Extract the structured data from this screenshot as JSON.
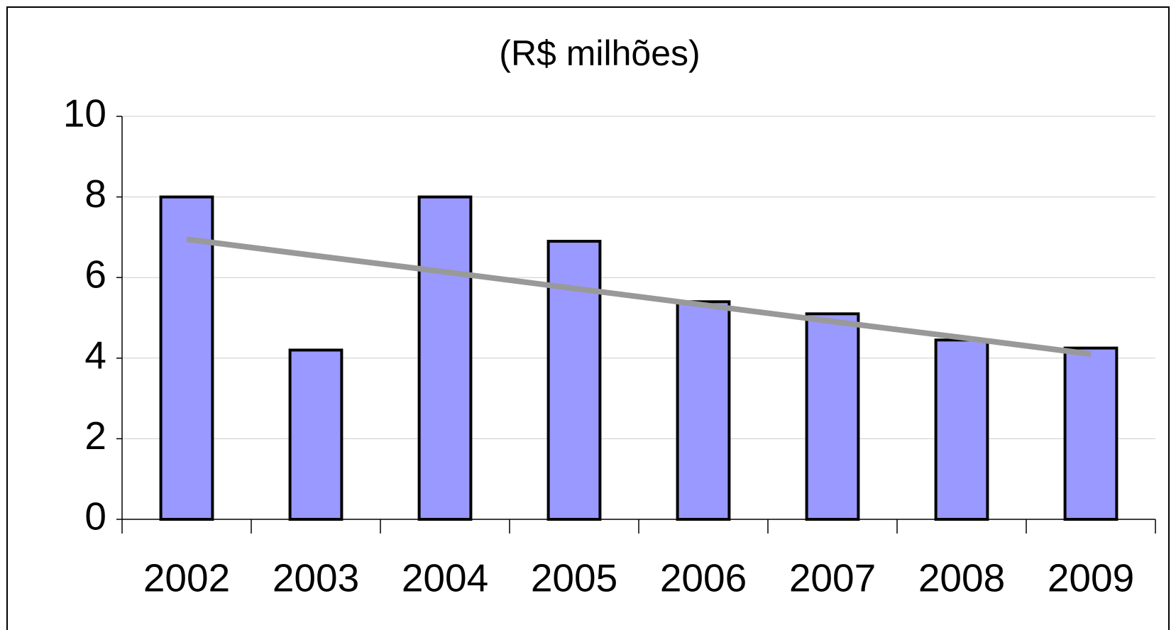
{
  "chart_data": {
    "type": "bar",
    "title": "(R$ milhões)",
    "categories": [
      "2002",
      "2003",
      "2004",
      "2005",
      "2006",
      "2007",
      "2008",
      "2009"
    ],
    "values": [
      8.0,
      4.2,
      8.0,
      6.9,
      5.4,
      5.1,
      4.45,
      4.25
    ],
    "color": "#9999ff",
    "trend": {
      "color": "#999999",
      "values": [
        6.95,
        6.54,
        6.14,
        5.73,
        5.32,
        4.91,
        4.51,
        4.1
      ]
    },
    "ylim": [
      0,
      10
    ],
    "yticks": [
      0,
      2,
      4,
      6,
      8,
      10
    ],
    "grid": true
  }
}
